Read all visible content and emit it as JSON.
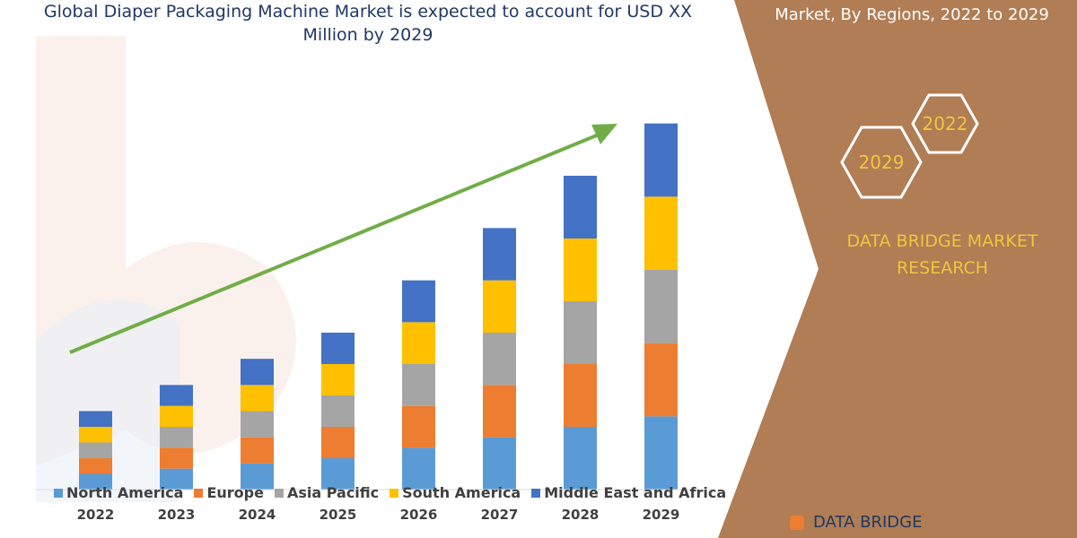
{
  "chart_data": {
    "type": "bar",
    "stacked": true,
    "title": "Global Diaper Packaging Machine Market is expected to account for USD XX Million by 2029",
    "categories": [
      "2022",
      "2023",
      "2024",
      "2025",
      "2026",
      "2027",
      "2028",
      "2029"
    ],
    "series": [
      {
        "name": "North America",
        "color": "#5b9bd5",
        "values": [
          15,
          20,
          25,
          30,
          40,
          50,
          60,
          70
        ]
      },
      {
        "name": "Europe",
        "color": "#ed7d31",
        "values": [
          15,
          20,
          25,
          30,
          40,
          50,
          60,
          70
        ]
      },
      {
        "name": "Asia Pacific",
        "color": "#a5a5a5",
        "values": [
          15,
          20,
          25,
          30,
          40,
          50,
          60,
          70
        ]
      },
      {
        "name": "South America",
        "color": "#ffc000",
        "values": [
          15,
          20,
          25,
          30,
          40,
          50,
          60,
          70
        ]
      },
      {
        "name": "Middle East and Africa",
        "color": "#4472c4",
        "values": [
          15,
          20,
          25,
          30,
          40,
          50,
          60,
          70
        ]
      }
    ],
    "ylim": [
      0,
      360
    ],
    "legend_position": "bottom",
    "grid": false,
    "trend_arrow_color": "#70ad47"
  },
  "side_panel": {
    "title": "Market, By Regions, 2022 to 2029",
    "hex_labels": [
      "2022",
      "2029"
    ],
    "brand_line1": "DATA BRIDGE MARKET",
    "brand_line2": "RESEARCH",
    "panel_color": "#b07d55",
    "accent_color": "#f2c53d"
  },
  "footer": {
    "logo_text": "DATA BRIDGE"
  }
}
